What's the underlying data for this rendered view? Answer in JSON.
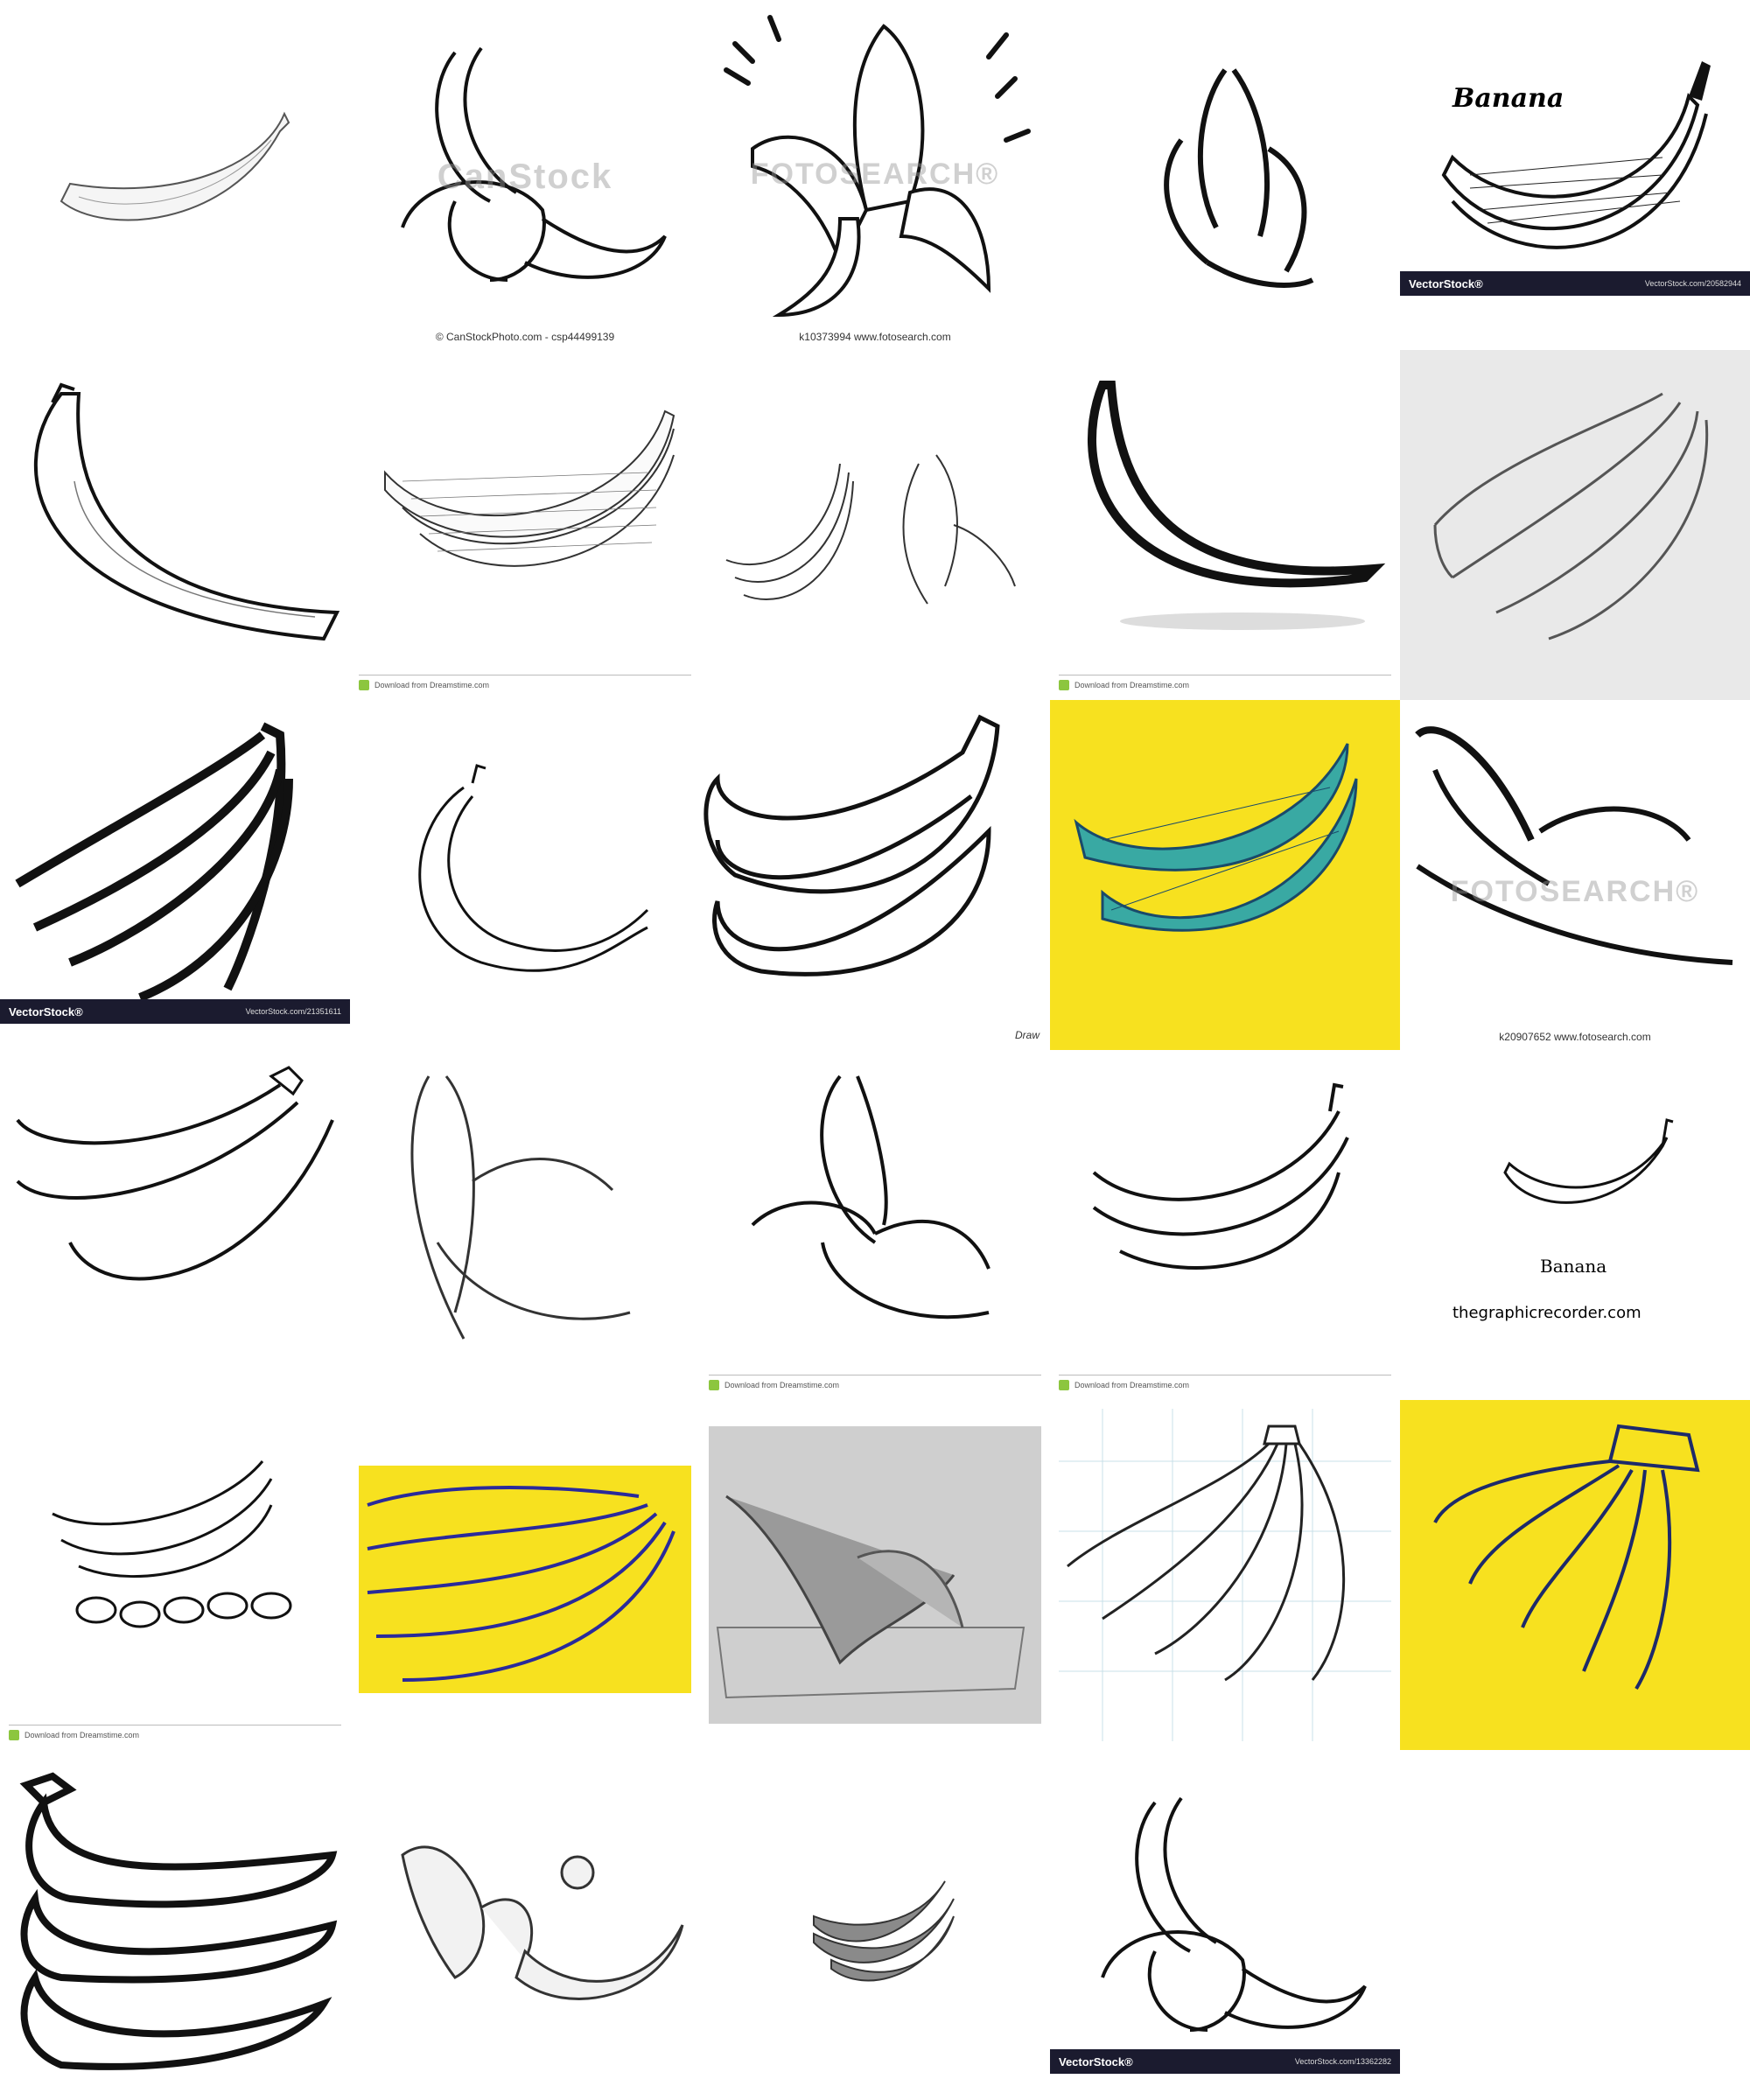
{
  "captions": {
    "canstock": "© CanStockPhoto.com - csp44499139",
    "fotosearch_1": "k10373994  www.fotosearch.com",
    "fotosearch_2": "k20907652  www.fotosearch.com",
    "vectorstock_1_url": "VectorStock.com/20582944",
    "vectorstock_2_url": "VectorStock.com/21351611",
    "vectorstock_3_url": "VectorStock.com/13362282",
    "vectorstock_brand": "VectorStock®",
    "dreamstime": "Download from Dreamstime.com",
    "graphic_recorder": "thegraphicrecorder.com"
  },
  "watermarks": {
    "canstock": "CanStock",
    "fotosearch": "FOTOSEARCH®"
  },
  "labels": {
    "banana_title": "Banana",
    "banana_handwritten": "Banana",
    "draw_mark": "Draw"
  },
  "colors": {
    "yellow_bg": "#f7e11f",
    "ink": "#111111",
    "teal": "#1f8a8a"
  }
}
